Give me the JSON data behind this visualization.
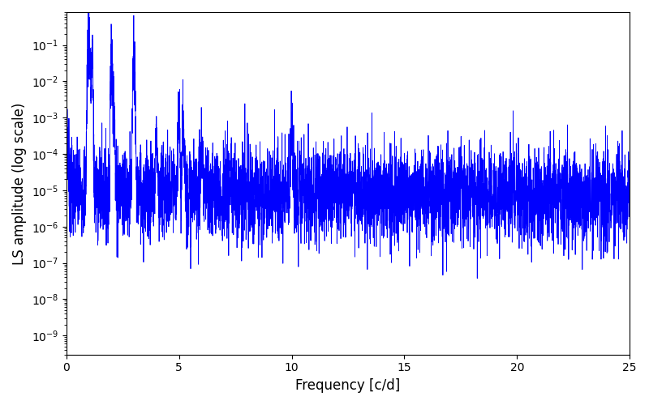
{
  "title": "",
  "xlabel": "Frequency [c/d]",
  "ylabel": "LS amplitude (log scale)",
  "line_color": "#0000ff",
  "line_width": 0.6,
  "freq_min": 0.0,
  "freq_max": 25.0,
  "ylim_min": 3e-10,
  "ylim_max": 0.8,
  "n_points": 5000,
  "seed": 7,
  "background_color": "#ffffff",
  "figsize": [
    8.0,
    5.0
  ],
  "dpi": 100
}
